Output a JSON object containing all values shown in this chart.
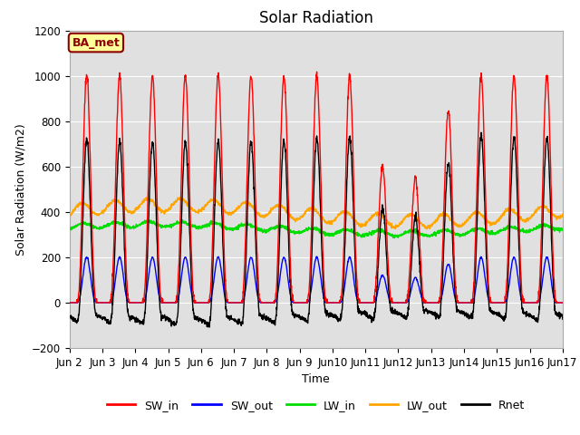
{
  "title": "Solar Radiation",
  "ylabel": "Solar Radiation (W/m2)",
  "xlabel": "Time",
  "ylim": [
    -200,
    1200
  ],
  "yticks": [
    -200,
    0,
    200,
    400,
    600,
    800,
    1000,
    1200
  ],
  "site_label": "BA_met",
  "start_day": 2,
  "end_day": 17,
  "n_days": 15,
  "colors": {
    "SW_in": "#ff0000",
    "SW_out": "#0000ff",
    "LW_in": "#00dd00",
    "LW_out": "#ffa500",
    "Rnet": "#000000"
  },
  "line_width": 1.0,
  "background_color": "#ffffff",
  "plot_bg_color": "#e0e0e0",
  "grid_color": "#ffffff",
  "title_fontsize": 12,
  "label_fontsize": 9,
  "tick_fontsize": 8.5,
  "legend_fontsize": 9
}
